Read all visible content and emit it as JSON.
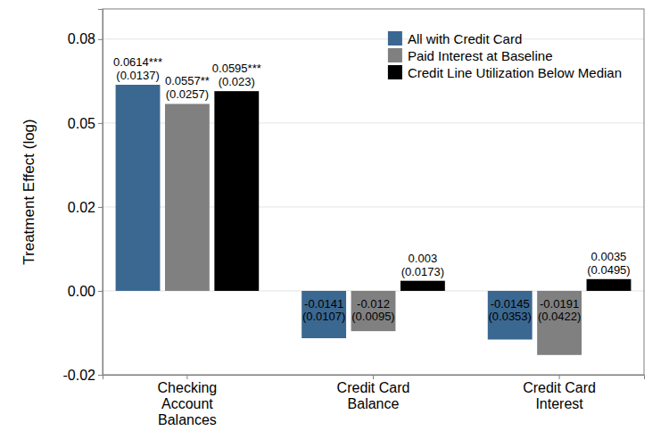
{
  "chart_data": {
    "type": "bar",
    "y_label": "Treatment Effect (log)",
    "categories": [
      "Checking\nAccount\nBalances",
      "Credit Card\nBalance",
      "Credit Card\nInterest"
    ],
    "series": [
      {
        "name": "All with Credit Card",
        "color": "#3b6891",
        "values": [
          0.0614,
          -0.0141,
          -0.0145
        ],
        "value_labels": [
          "0.0614***",
          "-0.0141",
          "-0.0145"
        ],
        "error_labels": [
          "(0.0137)",
          "(0.0107)",
          "(0.0353)"
        ]
      },
      {
        "name": "Paid Interest at Baseline",
        "color": "#808080",
        "values": [
          0.0557,
          -0.012,
          -0.0191
        ],
        "value_labels": [
          "0.0557**",
          "-0.012",
          "-0.0191"
        ],
        "error_labels": [
          "(0.0257)",
          "(0.0095)",
          "(0.0422)"
        ]
      },
      {
        "name": "Credit Line Utilization Below Median",
        "color": "#000000",
        "values": [
          0.0595,
          0.003,
          0.0035
        ],
        "value_labels": [
          "0.0595***",
          "0.003",
          "0.0035"
        ],
        "error_labels": [
          "(0.023)",
          "(0.0173)",
          "(0.0495)"
        ]
      }
    ],
    "ylim": [
      -0.025,
      0.084
    ],
    "yticks": [
      {
        "value": -0.025,
        "label": "-0.02"
      },
      {
        "value": 0,
        "label": "0.00"
      },
      {
        "value": 0.025,
        "label": "0.02"
      },
      {
        "value": 0.05,
        "label": "0.05"
      },
      {
        "value": 0.075,
        "label": "0.08"
      }
    ],
    "grid": true,
    "legend": "top-right",
    "data_labels": true
  }
}
